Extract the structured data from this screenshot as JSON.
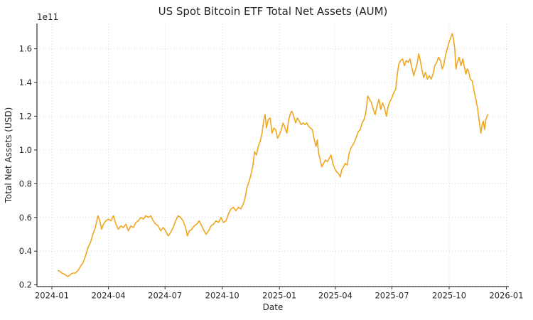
{
  "style": {
    "background": "#ffffff",
    "line_color": "#F0A620",
    "grid_color": "#cfcfcf",
    "spine_color": "#333333",
    "text_color": "#262626"
  },
  "chart_data": {
    "type": "line",
    "title": "US Spot Bitcoin ETF Total Net Assets (AUM)",
    "xlabel": "Date",
    "ylabel": "Total Net Assets (USD)",
    "y_offset_label": "1e11",
    "y_unit": "values are multiples of 1e11 USD",
    "grid": true,
    "legend": false,
    "x_epoch": "2024-01-01",
    "x_tick_labels": [
      "2024-01",
      "2024-04",
      "2024-07",
      "2024-10",
      "2025-01",
      "2025-04",
      "2025-07",
      "2025-10",
      "2026-01"
    ],
    "x_tick_days": [
      0,
      91,
      182,
      274,
      366,
      456,
      547,
      639,
      731
    ],
    "y_ticks": [
      0.2,
      0.4,
      0.6,
      0.8,
      1.0,
      1.2,
      1.4,
      1.6
    ],
    "xlim_days": [
      -24,
      735
    ],
    "ylim": [
      0.19,
      1.75
    ],
    "series": [
      {
        "name": "Total Net Assets",
        "color": "#F0A620",
        "points_format": "[days_since_2024-01-01, value_x1e11_USD]",
        "points": [
          [
            10,
            0.285
          ],
          [
            13,
            0.28
          ],
          [
            16,
            0.27
          ],
          [
            19,
            0.265
          ],
          [
            22,
            0.26
          ],
          [
            25,
            0.25
          ],
          [
            28,
            0.255
          ],
          [
            31,
            0.265
          ],
          [
            34,
            0.27
          ],
          [
            38,
            0.27
          ],
          [
            42,
            0.285
          ],
          [
            46,
            0.31
          ],
          [
            50,
            0.33
          ],
          [
            54,
            0.37
          ],
          [
            58,
            0.42
          ],
          [
            62,
            0.45
          ],
          [
            66,
            0.5
          ],
          [
            70,
            0.54
          ],
          [
            74,
            0.61
          ],
          [
            77,
            0.58
          ],
          [
            80,
            0.53
          ],
          [
            83,
            0.56
          ],
          [
            87,
            0.58
          ],
          [
            91,
            0.59
          ],
          [
            95,
            0.58
          ],
          [
            99,
            0.61
          ],
          [
            103,
            0.56
          ],
          [
            107,
            0.53
          ],
          [
            111,
            0.55
          ],
          [
            115,
            0.54
          ],
          [
            119,
            0.56
          ],
          [
            123,
            0.52
          ],
          [
            127,
            0.55
          ],
          [
            131,
            0.54
          ],
          [
            135,
            0.57
          ],
          [
            139,
            0.58
          ],
          [
            143,
            0.6
          ],
          [
            147,
            0.59
          ],
          [
            151,
            0.61
          ],
          [
            155,
            0.6
          ],
          [
            159,
            0.61
          ],
          [
            163,
            0.58
          ],
          [
            167,
            0.56
          ],
          [
            171,
            0.55
          ],
          [
            175,
            0.52
          ],
          [
            179,
            0.54
          ],
          [
            183,
            0.52
          ],
          [
            187,
            0.49
          ],
          [
            191,
            0.51
          ],
          [
            195,
            0.54
          ],
          [
            199,
            0.58
          ],
          [
            203,
            0.61
          ],
          [
            207,
            0.6
          ],
          [
            211,
            0.58
          ],
          [
            215,
            0.54
          ],
          [
            218,
            0.49
          ],
          [
            221,
            0.52
          ],
          [
            225,
            0.53
          ],
          [
            229,
            0.55
          ],
          [
            233,
            0.56
          ],
          [
            237,
            0.58
          ],
          [
            241,
            0.55
          ],
          [
            245,
            0.52
          ],
          [
            248,
            0.5
          ],
          [
            252,
            0.52
          ],
          [
            256,
            0.55
          ],
          [
            260,
            0.56
          ],
          [
            264,
            0.58
          ],
          [
            268,
            0.57
          ],
          [
            272,
            0.6
          ],
          [
            276,
            0.57
          ],
          [
            280,
            0.58
          ],
          [
            284,
            0.62
          ],
          [
            288,
            0.65
          ],
          [
            292,
            0.66
          ],
          [
            296,
            0.64
          ],
          [
            300,
            0.66
          ],
          [
            304,
            0.65
          ],
          [
            308,
            0.68
          ],
          [
            311,
            0.72
          ],
          [
            314,
            0.78
          ],
          [
            317,
            0.81
          ],
          [
            320,
            0.85
          ],
          [
            323,
            0.9
          ],
          [
            326,
            0.99
          ],
          [
            329,
            0.97
          ],
          [
            332,
            1.02
          ],
          [
            335,
            1.05
          ],
          [
            338,
            1.1
          ],
          [
            341,
            1.18
          ],
          [
            343,
            1.21
          ],
          [
            345,
            1.13
          ],
          [
            348,
            1.18
          ],
          [
            351,
            1.19
          ],
          [
            354,
            1.1
          ],
          [
            357,
            1.13
          ],
          [
            360,
            1.12
          ],
          [
            363,
            1.07
          ],
          [
            366,
            1.09
          ],
          [
            369,
            1.12
          ],
          [
            372,
            1.16
          ],
          [
            375,
            1.13
          ],
          [
            378,
            1.1
          ],
          [
            381,
            1.18
          ],
          [
            384,
            1.22
          ],
          [
            386,
            1.23
          ],
          [
            389,
            1.2
          ],
          [
            392,
            1.16
          ],
          [
            395,
            1.19
          ],
          [
            398,
            1.17
          ],
          [
            401,
            1.15
          ],
          [
            404,
            1.16
          ],
          [
            407,
            1.15
          ],
          [
            410,
            1.16
          ],
          [
            413,
            1.14
          ],
          [
            416,
            1.13
          ],
          [
            419,
            1.12
          ],
          [
            422,
            1.06
          ],
          [
            425,
            1.02
          ],
          [
            427,
            1.06
          ],
          [
            429,
            0.98
          ],
          [
            431,
            0.95
          ],
          [
            434,
            0.9
          ],
          [
            437,
            0.92
          ],
          [
            440,
            0.94
          ],
          [
            443,
            0.93
          ],
          [
            446,
            0.95
          ],
          [
            449,
            0.97
          ],
          [
            452,
            0.92
          ],
          [
            455,
            0.89
          ],
          [
            458,
            0.87
          ],
          [
            461,
            0.86
          ],
          [
            464,
            0.84
          ],
          [
            466,
            0.88
          ],
          [
            469,
            0.9
          ],
          [
            472,
            0.92
          ],
          [
            475,
            0.91
          ],
          [
            478,
            0.98
          ],
          [
            481,
            1.01
          ],
          [
            484,
            1.03
          ],
          [
            487,
            1.05
          ],
          [
            490,
            1.08
          ],
          [
            493,
            1.11
          ],
          [
            496,
            1.12
          ],
          [
            499,
            1.16
          ],
          [
            502,
            1.18
          ],
          [
            505,
            1.22
          ],
          [
            508,
            1.32
          ],
          [
            511,
            1.3
          ],
          [
            514,
            1.28
          ],
          [
            517,
            1.24
          ],
          [
            520,
            1.21
          ],
          [
            523,
            1.26
          ],
          [
            526,
            1.3
          ],
          [
            529,
            1.24
          ],
          [
            532,
            1.28
          ],
          [
            535,
            1.25
          ],
          [
            538,
            1.2
          ],
          [
            541,
            1.26
          ],
          [
            544,
            1.29
          ],
          [
            547,
            1.31
          ],
          [
            550,
            1.34
          ],
          [
            553,
            1.36
          ],
          [
            556,
            1.46
          ],
          [
            558,
            1.51
          ],
          [
            561,
            1.53
          ],
          [
            564,
            1.54
          ],
          [
            567,
            1.5
          ],
          [
            570,
            1.53
          ],
          [
            573,
            1.52
          ],
          [
            576,
            1.54
          ],
          [
            579,
            1.49
          ],
          [
            582,
            1.44
          ],
          [
            585,
            1.48
          ],
          [
            588,
            1.52
          ],
          [
            590,
            1.57
          ],
          [
            592,
            1.54
          ],
          [
            595,
            1.48
          ],
          [
            598,
            1.43
          ],
          [
            601,
            1.46
          ],
          [
            604,
            1.42
          ],
          [
            607,
            1.44
          ],
          [
            610,
            1.42
          ],
          [
            613,
            1.45
          ],
          [
            616,
            1.5
          ],
          [
            619,
            1.52
          ],
          [
            622,
            1.55
          ],
          [
            625,
            1.53
          ],
          [
            628,
            1.48
          ],
          [
            630,
            1.5
          ],
          [
            633,
            1.56
          ],
          [
            636,
            1.6
          ],
          [
            639,
            1.64
          ],
          [
            642,
            1.67
          ],
          [
            644,
            1.69
          ],
          [
            646,
            1.66
          ],
          [
            648,
            1.6
          ],
          [
            650,
            1.48
          ],
          [
            652,
            1.52
          ],
          [
            655,
            1.55
          ],
          [
            658,
            1.5
          ],
          [
            661,
            1.54
          ],
          [
            663,
            1.5
          ],
          [
            666,
            1.45
          ],
          [
            668,
            1.48
          ],
          [
            670,
            1.47
          ],
          [
            673,
            1.42
          ],
          [
            676,
            1.41
          ],
          [
            679,
            1.35
          ],
          [
            682,
            1.3
          ],
          [
            685,
            1.24
          ],
          [
            687,
            1.18
          ],
          [
            690,
            1.1
          ],
          [
            692,
            1.15
          ],
          [
            694,
            1.17
          ],
          [
            696,
            1.12
          ],
          [
            698,
            1.18
          ],
          [
            701,
            1.21
          ]
        ]
      }
    ]
  }
}
